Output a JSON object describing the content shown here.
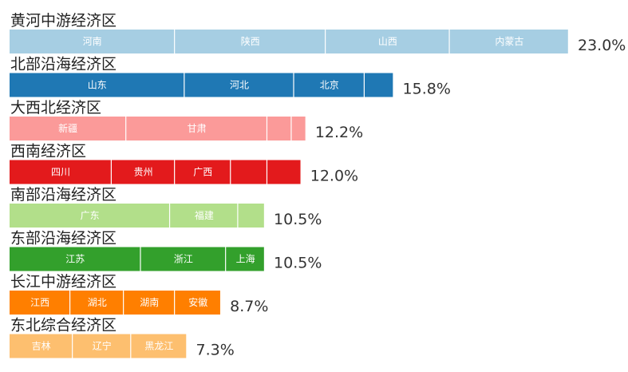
{
  "chart_data": {
    "type": "bar",
    "orientation": "horizontal",
    "stacked": true,
    "unit": "%",
    "xlim": [
      0,
      23.0
    ],
    "grid": false,
    "legend": "none",
    "regions": [
      {
        "name": "黄河中游经济区",
        "total_label": "23.0%",
        "total": 23.0,
        "color": "#a6cee3",
        "segments": [
          {
            "label": "河南",
            "value": 6.8
          },
          {
            "label": "陕西",
            "value": 6.2
          },
          {
            "label": "山西",
            "value": 5.1
          },
          {
            "label": "内蒙古",
            "value": 4.9
          }
        ]
      },
      {
        "name": "北部沿海经济区",
        "total_label": "15.8%",
        "total": 15.8,
        "color": "#1f78b4",
        "segments": [
          {
            "label": "山东",
            "value": 7.2
          },
          {
            "label": "河北",
            "value": 4.5
          },
          {
            "label": "北京",
            "value": 2.9
          },
          {
            "label": "",
            "value": 1.2
          }
        ]
      },
      {
        "name": "大西北经济区",
        "total_label": "12.2%",
        "total": 12.2,
        "color": "#fb9a99",
        "segments": [
          {
            "label": "新疆",
            "value": 4.8
          },
          {
            "label": "甘肃",
            "value": 5.8
          },
          {
            "label": "",
            "value": 1.0
          },
          {
            "label": "",
            "value": 0.6
          }
        ]
      },
      {
        "name": "西南经济区",
        "total_label": "12.0%",
        "total": 12.0,
        "color": "#e31a1c",
        "segments": [
          {
            "label": "四川",
            "value": 4.2
          },
          {
            "label": "贵州",
            "value": 2.6
          },
          {
            "label": "广西",
            "value": 2.3
          },
          {
            "label": "",
            "value": 1.5
          },
          {
            "label": "",
            "value": 1.4
          }
        ]
      },
      {
        "name": "南部沿海经济区",
        "total_label": "10.5%",
        "total": 10.5,
        "color": "#b2df8a",
        "segments": [
          {
            "label": "广东",
            "value": 6.6
          },
          {
            "label": "福建",
            "value": 2.8
          },
          {
            "label": "",
            "value": 1.1
          }
        ]
      },
      {
        "name": "东部沿海经济区",
        "total_label": "10.5%",
        "total": 10.5,
        "color": "#33a02c",
        "segments": [
          {
            "label": "江苏",
            "value": 5.4
          },
          {
            "label": "浙江",
            "value": 3.5
          },
          {
            "label": "上海",
            "value": 1.6
          }
        ]
      },
      {
        "name": "长江中游经济区",
        "total_label": "8.7%",
        "total": 8.7,
        "color": "#ff7f00",
        "segments": [
          {
            "label": "江西",
            "value": 2.5
          },
          {
            "label": "湖北",
            "value": 2.2
          },
          {
            "label": "湖南",
            "value": 2.1
          },
          {
            "label": "安徽",
            "value": 1.9
          }
        ]
      },
      {
        "name": "东北综合经济区",
        "total_label": "7.3%",
        "total": 7.3,
        "color": "#fdbf6f",
        "segments": [
          {
            "label": "吉林",
            "value": 2.6
          },
          {
            "label": "辽宁",
            "value": 2.4
          },
          {
            "label": "黑龙江",
            "value": 2.3
          }
        ]
      }
    ]
  }
}
